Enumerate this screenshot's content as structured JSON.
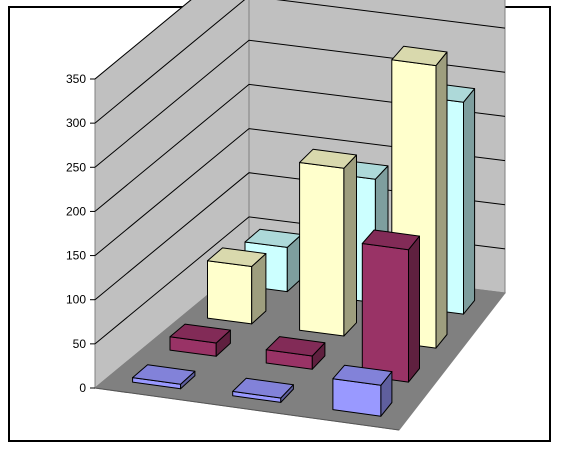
{
  "chart_data": {
    "type": "bar",
    "style": "3d-column",
    "title": "",
    "xlabel": "",
    "ylabel": "",
    "ylim": [
      0,
      350
    ],
    "yticks": [
      0,
      50,
      100,
      150,
      200,
      250,
      300,
      350
    ],
    "ytick_labels": [
      "0",
      "50",
      "100",
      "150",
      "200",
      "250",
      "300",
      "350"
    ],
    "grid": true,
    "legend": "none",
    "categories": [
      "",
      "",
      ""
    ],
    "series": [
      {
        "values": [
          5,
          5,
          35
        ],
        "color": "#9999ff"
      },
      {
        "values": [
          15,
          15,
          150
        ],
        "color": "#993366"
      },
      {
        "values": [
          65,
          190,
          320
        ],
        "color": "#ffffcc"
      },
      {
        "values": [
          50,
          140,
          240
        ],
        "color": "#ccffff"
      }
    ]
  }
}
